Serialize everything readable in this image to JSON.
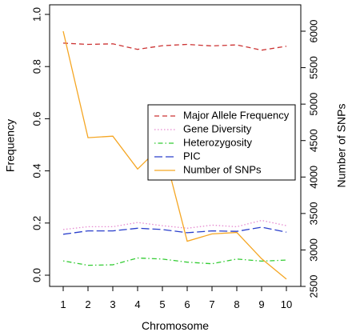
{
  "chart_data": {
    "type": "line",
    "title": "",
    "xlabel": "Chromosome",
    "ylabel": "Frequency",
    "y2label": "Number of SNPs",
    "x": [
      1,
      2,
      3,
      4,
      5,
      6,
      7,
      8,
      9,
      10
    ],
    "xticks": [
      "1",
      "2",
      "3",
      "4",
      "5",
      "6",
      "7",
      "8",
      "9",
      "10"
    ],
    "xlim": [
      1,
      10
    ],
    "ylim": [
      0,
      1
    ],
    "yticks": [
      "0.0",
      "0.2",
      "0.4",
      "0.6",
      "0.8",
      "1.0"
    ],
    "y2lim": [
      2600,
      6000
    ],
    "y2ticks": [
      "2500",
      "3000",
      "3500",
      "4000",
      "4500",
      "5000",
      "5500",
      "6000"
    ],
    "grid": false,
    "legend_position": "right",
    "series": [
      {
        "name": "Major Allele Frequency",
        "axis": "left",
        "color": "#cc3333",
        "dash": "dashed",
        "values": [
          0.89,
          0.885,
          0.887,
          0.866,
          0.88,
          0.885,
          0.879,
          0.883,
          0.863,
          0.878
        ]
      },
      {
        "name": "Gene Diversity",
        "axis": "left",
        "color": "#e68ad0",
        "dash": "dotted",
        "values": [
          0.175,
          0.186,
          0.186,
          0.202,
          0.19,
          0.18,
          0.192,
          0.186,
          0.21,
          0.19
        ]
      },
      {
        "name": "Heterozygosity",
        "axis": "left",
        "color": "#33cc33",
        "dash": "dotdash",
        "values": [
          0.055,
          0.038,
          0.04,
          0.066,
          0.062,
          0.05,
          0.044,
          0.062,
          0.054,
          0.058
        ]
      },
      {
        "name": "PIC",
        "axis": "left",
        "color": "#2a3fcc",
        "dash": "longdash",
        "values": [
          0.157,
          0.17,
          0.17,
          0.18,
          0.175,
          0.163,
          0.17,
          0.168,
          0.184,
          0.165
        ]
      },
      {
        "name": "Number of SNPs",
        "axis": "right",
        "color": "#f5a623",
        "dash": "solid",
        "values": [
          6000,
          4540,
          4560,
          4110,
          4440,
          3120,
          3220,
          3240,
          2880,
          2600
        ]
      }
    ]
  }
}
